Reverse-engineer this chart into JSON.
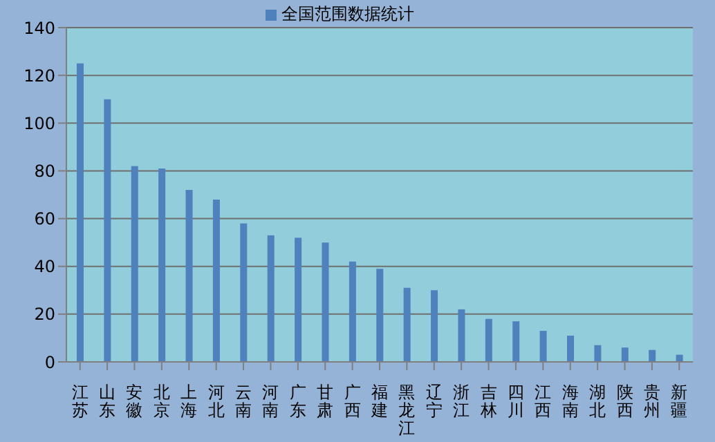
{
  "chart_data": {
    "type": "bar",
    "categories": [
      "江苏",
      "山东",
      "安徽",
      "北京",
      "上海",
      "河北",
      "云南",
      "河南",
      "广东",
      "甘肃",
      "广西",
      "福建",
      "黑龙江",
      "辽宁",
      "浙江",
      "吉林",
      "四川",
      "江西",
      "海南",
      "湖北",
      "陕西",
      "贵州",
      "新疆"
    ],
    "series": [
      {
        "name": "全国范围数据统计",
        "color": "#4f81bd",
        "values": [
          125,
          110,
          82,
          81,
          72,
          68,
          58,
          53,
          52,
          50,
          42,
          39,
          31,
          30,
          22,
          18,
          17,
          13,
          11,
          7,
          6,
          5,
          3
        ]
      }
    ],
    "ylim": [
      0,
      140
    ],
    "yticks": [
      0,
      20,
      40,
      60,
      80,
      100,
      120,
      140
    ],
    "grid": "y",
    "legend": "top"
  }
}
